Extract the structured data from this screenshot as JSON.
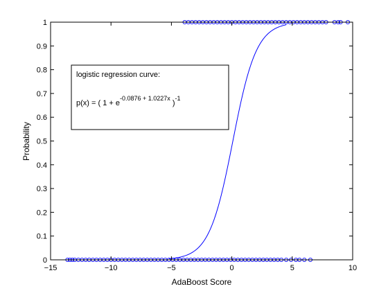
{
  "chart_data": {
    "type": "scatter",
    "title": "",
    "xlabel": "AdaBoost Score",
    "ylabel": "Probability",
    "xlim": [
      -15,
      10
    ],
    "ylim": [
      0,
      1
    ],
    "x_ticks": [
      -15,
      -10,
      -5,
      0,
      5,
      10
    ],
    "y_ticks": [
      0,
      0.1,
      0.2,
      0.3,
      0.4,
      0.5,
      0.6,
      0.7,
      0.8,
      0.9,
      1
    ],
    "x_tick_labels": [
      "−15",
      "−10",
      "−5",
      "0",
      "5",
      "10"
    ],
    "y_tick_labels": [
      "0",
      "0.1",
      "0.2",
      "0.3",
      "0.4",
      "0.5",
      "0.6",
      "0.7",
      "0.8",
      "0.9",
      "1"
    ],
    "grid": false,
    "colors": {
      "series": "#0000ff",
      "axes": "#000000"
    },
    "series": [
      {
        "marker": "circle-open",
        "y": 0,
        "x": [
          -13.6,
          -13.4,
          -13.2,
          -13.0,
          -12.7,
          -12.4,
          -12.1,
          -11.8,
          -11.5,
          -11.2,
          -10.9,
          -10.6,
          -10.3,
          -10.0,
          -9.7,
          -9.4,
          -9.1,
          -8.8,
          -8.5,
          -8.2,
          -7.9,
          -7.6,
          -7.3,
          -7.0,
          -6.7,
          -6.4,
          -6.1,
          -5.8,
          -5.5,
          -5.2,
          -4.9,
          -4.6,
          -4.3,
          -4.0,
          -3.7,
          -3.4,
          -3.1,
          -2.8,
          -2.5,
          -2.2,
          -1.9,
          -1.6,
          -1.3,
          -1.0,
          -0.7,
          -0.4,
          -0.1,
          0.2,
          0.5,
          0.8,
          1.1,
          1.4,
          1.7,
          2.0,
          2.3,
          2.6,
          2.9,
          3.2,
          3.5,
          3.8,
          4.1,
          4.5,
          4.9,
          5.3,
          5.6,
          6.0,
          6.5
        ]
      },
      {
        "marker": "circle-open",
        "y": 1,
        "x": [
          -3.9,
          -3.6,
          -3.3,
          -3.0,
          -2.7,
          -2.4,
          -2.1,
          -1.8,
          -1.5,
          -1.2,
          -0.9,
          -0.6,
          -0.3,
          0.0,
          0.3,
          0.6,
          0.9,
          1.2,
          1.5,
          1.8,
          2.1,
          2.4,
          2.7,
          3.0,
          3.3,
          3.6,
          3.9,
          4.2,
          4.5,
          4.8,
          5.1,
          5.4,
          5.7,
          6.0,
          6.3,
          6.6,
          6.9,
          7.2,
          7.5,
          7.8,
          8.5,
          8.8,
          9.0,
          9.6
        ]
      },
      {
        "type": "line",
        "line": "solid",
        "function": "logistic",
        "intercept": -0.0876,
        "slope": 1.0227,
        "x_range": [
          -5.2,
          4.5
        ]
      }
    ],
    "annotation": {
      "title": "logistic regression curve:",
      "eq_prefix": "p(x) = ( 1 + e",
      "eq_exponent": "-0.0876 + 1.0227x",
      "eq_close": " )",
      "eq_power": "-1"
    }
  }
}
